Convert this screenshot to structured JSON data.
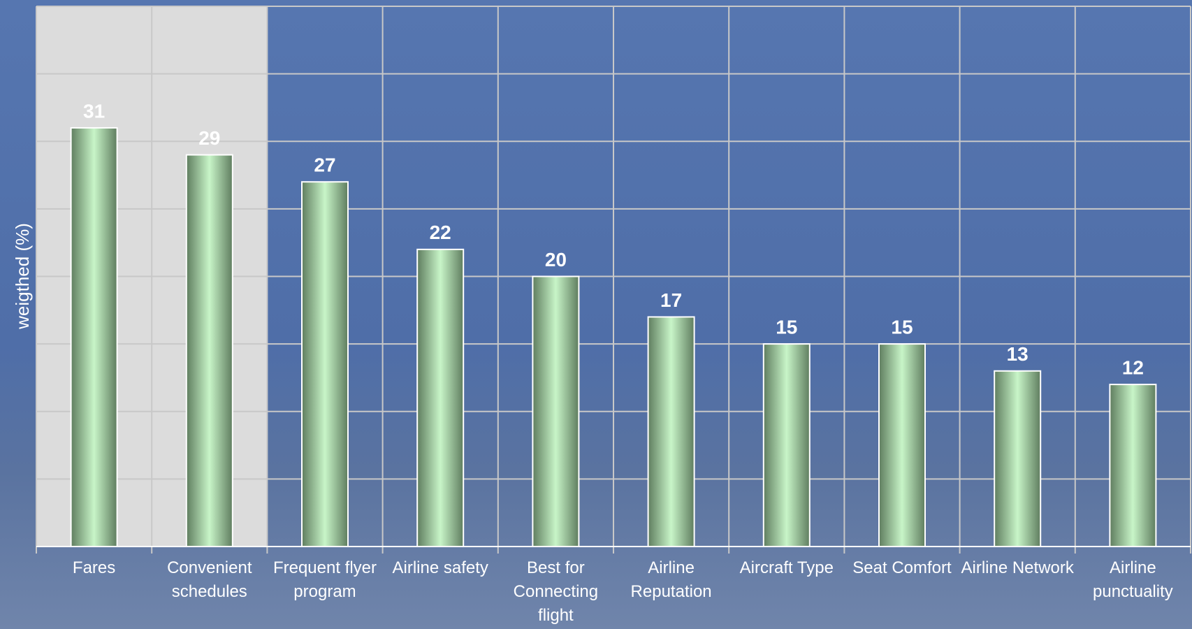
{
  "chart_data": {
    "type": "bar",
    "y_label": "weigthed (%)",
    "categories": [
      "Fares",
      "Convenient schedules",
      "Frequent flyer program",
      "Airline safety",
      "Best for Connecting flight",
      "Airline Reputation",
      "Aircraft Type",
      "Seat Comfort",
      "Airline Network",
      "Airline punctuality"
    ],
    "values": [
      31,
      29,
      27,
      22,
      20,
      17,
      15,
      15,
      13,
      12
    ],
    "ylim": [
      0,
      40
    ],
    "yticks": [
      0,
      5,
      10,
      15,
      20,
      25,
      30,
      35,
      40
    ],
    "grid": true,
    "color": "#c8f5c8"
  }
}
